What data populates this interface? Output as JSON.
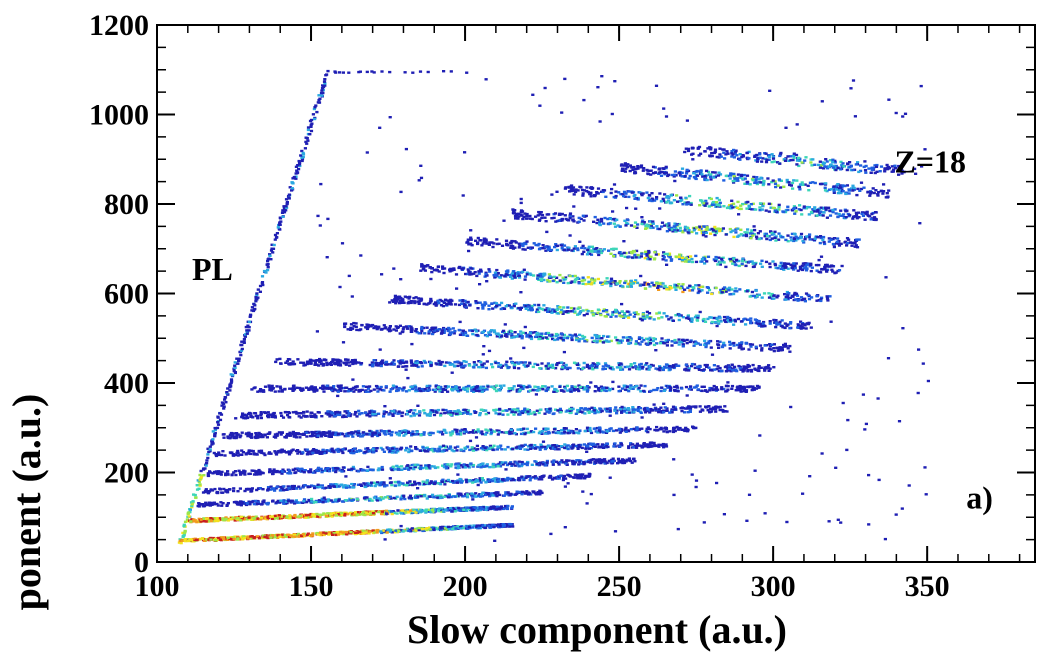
{
  "chart_data": {
    "type": "heatmap",
    "title": "",
    "xlabel": "Slow component (a.u.)",
    "ylabel": "ponent (a.u.)",
    "xlim": [
      100,
      385
    ],
    "ylim": [
      0,
      1200
    ],
    "x_ticks": [
      100,
      150,
      200,
      250,
      300,
      350
    ],
    "y_ticks": [
      0,
      200,
      400,
      600,
      800,
      1000,
      1200
    ],
    "grid": false,
    "colormap": [
      "#1f1fb4",
      "#1f5fe0",
      "#2aa8e0",
      "#3cd6b8",
      "#9be64a",
      "#f2e21e",
      "#f29a1e",
      "#c81e1e"
    ],
    "annotations": [
      {
        "text": "PL",
        "x": 118,
        "y": 630
      },
      {
        "text": "Z=18",
        "x": 351,
        "y": 870
      },
      {
        "text": "a)",
        "x": 367,
        "y": 120
      }
    ],
    "gamma_line": {
      "start": [
        107,
        45
      ],
      "end": [
        155,
        1098
      ],
      "top_end": [
        205,
        1098
      ]
    },
    "bands": [
      {
        "z": 1,
        "x_start": 107,
        "x_end": 215,
        "y_start": 50,
        "y_end": 85,
        "peak": 0.95
      },
      {
        "z": 2,
        "x_start": 110,
        "x_end": 215,
        "y_start": 95,
        "y_end": 125,
        "peak": 0.9
      },
      {
        "z": 3,
        "x_start": 112,
        "x_end": 225,
        "y_start": 130,
        "y_end": 158,
        "peak": 0.6
      },
      {
        "z": 4,
        "x_start": 114,
        "x_end": 240,
        "y_start": 160,
        "y_end": 195,
        "peak": 0.5
      },
      {
        "z": 5,
        "x_start": 116,
        "x_end": 255,
        "y_start": 200,
        "y_end": 230,
        "peak": 0.5
      },
      {
        "z": 6,
        "x_start": 118,
        "x_end": 265,
        "y_start": 245,
        "y_end": 265,
        "peak": 0.45
      },
      {
        "z": 7,
        "x_start": 121,
        "x_end": 275,
        "y_start": 285,
        "y_end": 300,
        "peak": 0.45
      },
      {
        "z": 8,
        "x_start": 125,
        "x_end": 285,
        "y_start": 330,
        "y_end": 345,
        "peak": 0.5
      },
      {
        "z": 9,
        "x_start": 130,
        "x_end": 295,
        "y_start": 390,
        "y_end": 390,
        "peak": 0.5
      },
      {
        "z": 10,
        "x_start": 138,
        "x_end": 300,
        "y_start": 450,
        "y_end": 435,
        "peak": 0.5
      },
      {
        "z": 11,
        "x_start": 160,
        "x_end": 305,
        "y_start": 530,
        "y_end": 480,
        "peak": 0.55
      },
      {
        "z": 12,
        "x_start": 175,
        "x_end": 312,
        "y_start": 590,
        "y_end": 530,
        "peak": 0.65
      },
      {
        "z": 13,
        "x_start": 185,
        "x_end": 318,
        "y_start": 660,
        "y_end": 590,
        "peak": 0.85
      },
      {
        "z": 14,
        "x_start": 200,
        "x_end": 322,
        "y_start": 720,
        "y_end": 655,
        "peak": 0.7
      },
      {
        "z": 15,
        "x_start": 215,
        "x_end": 328,
        "y_start": 780,
        "y_end": 715,
        "peak": 0.7
      },
      {
        "z": 16,
        "x_start": 232,
        "x_end": 333,
        "y_start": 835,
        "y_end": 775,
        "peak": 0.7
      },
      {
        "z": 17,
        "x_start": 250,
        "x_end": 338,
        "y_start": 885,
        "y_end": 825,
        "peak": 0.6
      },
      {
        "z": 18,
        "x_start": 270,
        "x_end": 342,
        "y_start": 925,
        "y_end": 875,
        "peak": 0.55
      }
    ]
  }
}
